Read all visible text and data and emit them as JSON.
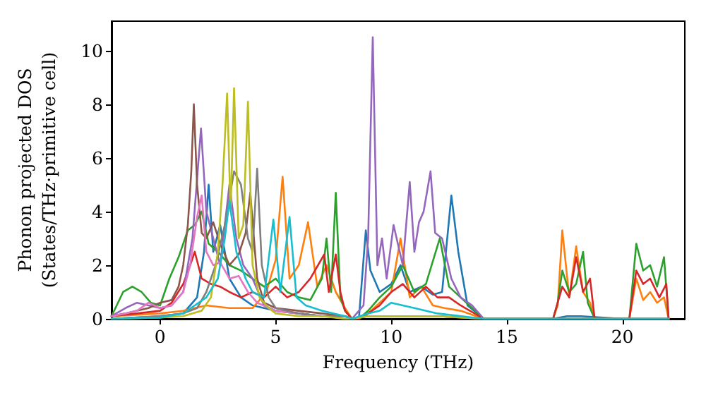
{
  "chart_data": {
    "type": "line",
    "xlabel": "Frequency (THz)",
    "ylabel": "Phonon projected DOS\n(States/THz·primitive cell)",
    "xlim": [
      -2.1,
      22.7
    ],
    "ylim": [
      0,
      11.1
    ],
    "xticks": [
      0,
      5,
      10,
      15,
      20
    ],
    "yticks": [
      0,
      2,
      4,
      6,
      8,
      10
    ],
    "grid": false,
    "marker": "none",
    "line_style": "solid",
    "series": [
      {
        "color": "#1f77b4",
        "x": [
          -2.1,
          -1,
          0,
          1,
          1.6,
          1.9,
          2.1,
          2.3,
          2.6,
          3,
          3.5,
          4,
          5,
          6,
          7,
          8,
          8.3,
          8.6,
          8.9,
          9.1,
          9.5,
          10,
          10.4,
          10.8,
          11.3,
          11.8,
          12.2,
          12.6,
          12.9,
          13.3,
          14,
          17,
          17.6,
          18.2,
          20,
          22
        ],
        "values": [
          0,
          0.05,
          0.1,
          0.2,
          0.8,
          2.5,
          5.0,
          2.5,
          3.5,
          1.5,
          0.8,
          0.5,
          0.3,
          0.2,
          0.1,
          0.1,
          0,
          0,
          3.3,
          1.8,
          1.0,
          1.3,
          2.0,
          1.0,
          1.2,
          0.9,
          1.0,
          4.6,
          2.5,
          0.5,
          0,
          0,
          0.1,
          0.1,
          0,
          0
        ]
      },
      {
        "color": "#ff7f0e",
        "x": [
          -2.1,
          0,
          1,
          2,
          3,
          4,
          4.6,
          5.0,
          5.3,
          5.6,
          6.0,
          6.4,
          6.8,
          7.2,
          7.6,
          8,
          8.3,
          8.6,
          9,
          9.5,
          10,
          10.4,
          10.8,
          11.3,
          11.8,
          12.3,
          13,
          14,
          17,
          17.2,
          17.4,
          17.7,
          18.0,
          18.3,
          18.6,
          18.8,
          20.3,
          20.6,
          20.9,
          21.2,
          21.5,
          21.8,
          22
        ],
        "values": [
          0.1,
          0.2,
          0.3,
          0.5,
          0.4,
          0.4,
          1.0,
          2.2,
          5.3,
          1.5,
          2.0,
          3.6,
          1.2,
          2.0,
          1.0,
          0.4,
          0,
          0,
          0.2,
          0.6,
          1.0,
          3.0,
          0.8,
          1.2,
          0.5,
          0.4,
          0.3,
          0,
          0,
          0.5,
          3.3,
          0.8,
          2.7,
          1.0,
          0.6,
          0,
          0,
          1.5,
          0.7,
          1.0,
          0.6,
          0.8,
          0
        ]
      },
      {
        "color": "#2ca02c",
        "x": [
          -2.1,
          -1.6,
          -1.2,
          -0.8,
          -0.4,
          0,
          0.4,
          0.8,
          1.2,
          1.5,
          1.8,
          2.1,
          2.5,
          3,
          3.5,
          4,
          4.5,
          5,
          5.5,
          6,
          6.5,
          7,
          7.2,
          7.4,
          7.6,
          7.8,
          8,
          8.3,
          8.6,
          9,
          9.5,
          10,
          10.5,
          11,
          11.5,
          12.1,
          12.5,
          13,
          13.5,
          14,
          17,
          17.2,
          17.4,
          17.7,
          18.0,
          18.3,
          18.5,
          18.8,
          20.3,
          20.6,
          20.9,
          21.2,
          21.5,
          21.8,
          22
        ],
        "values": [
          0.1,
          1.0,
          1.2,
          1.0,
          0.6,
          0.5,
          1.5,
          2.3,
          3.3,
          3.5,
          4.0,
          2.8,
          2.5,
          2.0,
          1.8,
          1.5,
          1.2,
          1.5,
          1.0,
          0.8,
          0.7,
          1.5,
          3.0,
          1.0,
          4.7,
          0.8,
          0.3,
          0,
          0,
          0.3,
          0.8,
          1.2,
          2.0,
          1.0,
          1.3,
          3.0,
          1.2,
          0.8,
          0.4,
          0,
          0,
          0.6,
          1.8,
          1.0,
          1.3,
          2.5,
          0.6,
          0,
          0,
          2.8,
          1.8,
          2.0,
          1.2,
          2.3,
          0
        ]
      },
      {
        "color": "#d62728",
        "x": [
          -2.1,
          -1,
          0,
          0.5,
          1,
          1.3,
          1.5,
          1.8,
          2.2,
          2.6,
          3,
          3.5,
          4,
          4.5,
          5,
          5.5,
          6,
          6.5,
          7.1,
          7.3,
          7.6,
          7.8,
          8,
          8.3,
          8.6,
          9,
          9.5,
          10,
          10.5,
          11,
          11.5,
          12,
          12.5,
          13,
          14,
          17,
          17.2,
          17.4,
          17.7,
          18.0,
          18.3,
          18.6,
          18.8,
          20.3,
          20.6,
          20.9,
          21.2,
          21.6,
          21.9,
          22
        ],
        "values": [
          0.1,
          0.2,
          0.3,
          0.6,
          1.3,
          2.0,
          2.5,
          1.5,
          1.3,
          1.2,
          1.0,
          0.8,
          1.0,
          0.8,
          1.2,
          0.8,
          1.0,
          1.5,
          2.4,
          1.0,
          2.4,
          1.0,
          0.3,
          0,
          0,
          0.2,
          0.5,
          1.0,
          1.3,
          0.8,
          1.2,
          0.8,
          0.8,
          0.5,
          0,
          0,
          0.6,
          1.2,
          0.8,
          2.3,
          1.0,
          1.5,
          0,
          0,
          1.8,
          1.3,
          1.5,
          0.8,
          1.3,
          0
        ]
      },
      {
        "color": "#9467bd",
        "x": [
          -2.1,
          -1.5,
          -1,
          -0.5,
          0,
          0.5,
          1,
          1.4,
          1.77,
          2.0,
          2.3,
          2.6,
          3.0,
          3.3,
          3.6,
          4,
          4.5,
          5,
          6,
          7,
          8,
          8.3,
          8.8,
          9.0,
          9.2,
          9.4,
          9.6,
          9.8,
          10.1,
          10.5,
          10.8,
          11.0,
          11.2,
          11.4,
          11.7,
          11.9,
          12.2,
          12.6,
          13,
          13.5,
          14,
          17,
          22
        ],
        "values": [
          0.1,
          0.4,
          0.6,
          0.5,
          0.4,
          0.5,
          1.0,
          3.0,
          7.1,
          4.0,
          3.0,
          2.0,
          5.0,
          3.0,
          2.0,
          1.5,
          0.5,
          0.3,
          0.2,
          0.1,
          0.1,
          0,
          0.5,
          3.0,
          10.5,
          2.0,
          3.0,
          1.5,
          3.5,
          2.0,
          5.1,
          2.5,
          3.6,
          4.0,
          5.5,
          3.2,
          3.0,
          1.5,
          0.8,
          0.5,
          0,
          0,
          0
        ]
      },
      {
        "color": "#8c564b",
        "x": [
          -2.1,
          -1.5,
          -1,
          -0.5,
          0,
          0.5,
          0.8,
          1.0,
          1.2,
          1.35,
          1.46,
          1.6,
          1.8,
          2.0,
          2.3,
          2.6,
          3.0,
          3.4,
          3.7,
          3.9,
          4.2,
          4.5,
          5,
          6,
          7,
          8,
          8.3,
          9,
          12,
          14,
          17,
          22
        ],
        "values": [
          0.1,
          0.2,
          0.3,
          0.4,
          0.6,
          0.7,
          1.2,
          2.0,
          3.5,
          5.5,
          8.0,
          5.0,
          3.2,
          3.0,
          3.6,
          2.8,
          2.0,
          2.4,
          3.2,
          4.7,
          1.5,
          0.6,
          0.4,
          0.3,
          0.2,
          0.1,
          0,
          0.1,
          0.1,
          0,
          0,
          0
        ]
      },
      {
        "color": "#e377c2",
        "x": [
          -2.1,
          -1.5,
          -1,
          -0.5,
          0,
          0.5,
          1,
          1.3,
          1.6,
          1.8,
          2.0,
          2.3,
          2.6,
          3.0,
          3.4,
          3.8,
          4.2,
          5,
          6,
          7,
          8
        ],
        "values": [
          0.1,
          0.2,
          0.3,
          0.6,
          0.4,
          0.5,
          1.0,
          2.0,
          3.8,
          4.6,
          2.5,
          2.0,
          2.1,
          1.5,
          1.6,
          1.0,
          0.6,
          0.3,
          0.2,
          0.1,
          0.1
        ]
      },
      {
        "color": "#7f7f7f",
        "x": [
          -2.1,
          0,
          1,
          1.6,
          2.0,
          2.4,
          2.8,
          3.2,
          3.5,
          3.8,
          4.0,
          4.2,
          4.4,
          4.7,
          5,
          6,
          7,
          8,
          8.3,
          9,
          12,
          14,
          17,
          22
        ],
        "values": [
          0,
          0.1,
          0.2,
          0.4,
          1.0,
          2.0,
          3.5,
          5.5,
          5.0,
          3.0,
          2.5,
          5.6,
          2.0,
          0.8,
          0.4,
          0.2,
          0.1,
          0.1,
          0,
          0.1,
          0.1,
          0,
          0,
          0
        ]
      },
      {
        "color": "#bcbd22",
        "x": [
          -2.1,
          0,
          1,
          1.8,
          2.2,
          2.5,
          2.7,
          2.9,
          3.05,
          3.2,
          3.4,
          3.6,
          3.8,
          4.0,
          4.3,
          4.7,
          5,
          6,
          7,
          8,
          8.3,
          9,
          12,
          14,
          17,
          22
        ],
        "values": [
          0,
          0.05,
          0.1,
          0.3,
          0.8,
          2.5,
          5.0,
          8.4,
          4.0,
          8.6,
          3.0,
          3.5,
          8.1,
          2.0,
          0.8,
          0.4,
          0.2,
          0.1,
          0.1,
          0,
          0,
          0.1,
          0.1,
          0,
          0,
          0
        ]
      },
      {
        "color": "#17becf",
        "x": [
          -2.1,
          0,
          1,
          1.5,
          2.0,
          2.5,
          2.8,
          3.0,
          3.3,
          3.7,
          4.0,
          4.5,
          4.9,
          5.2,
          5.6,
          5.9,
          6.3,
          7,
          8,
          8.3,
          9,
          9.5,
          10,
          11,
          12,
          14,
          17,
          22
        ],
        "values": [
          0,
          0.05,
          0.2,
          0.5,
          0.8,
          1.5,
          3.0,
          4.4,
          2.5,
          1.5,
          1.0,
          0.8,
          3.7,
          1.0,
          3.8,
          0.8,
          0.5,
          0.3,
          0.1,
          0,
          0.2,
          0.3,
          0.6,
          0.4,
          0.2,
          0,
          0,
          0
        ]
      }
    ]
  }
}
